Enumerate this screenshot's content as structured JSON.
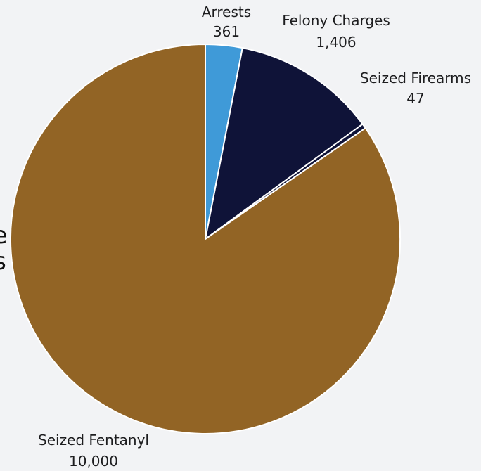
{
  "chart_data": {
    "type": "pie",
    "slices": [
      {
        "label": "Arrests",
        "value": 361,
        "display": "361",
        "color": "#3f9ad8"
      },
      {
        "label": "Felony Charges",
        "value": 1406,
        "display": "1,406",
        "color": "#0f1338"
      },
      {
        "label": "Seized Firearms",
        "value": 47,
        "display": "47",
        "color": "#0f1338"
      },
      {
        "label": "Seized Fentanyl",
        "value": 10000,
        "display": "10,000",
        "color": "#926425"
      }
    ],
    "cut_off_title": [
      "e",
      "s"
    ],
    "background": "#f2f3f5",
    "separator_color": "#ffffff"
  }
}
